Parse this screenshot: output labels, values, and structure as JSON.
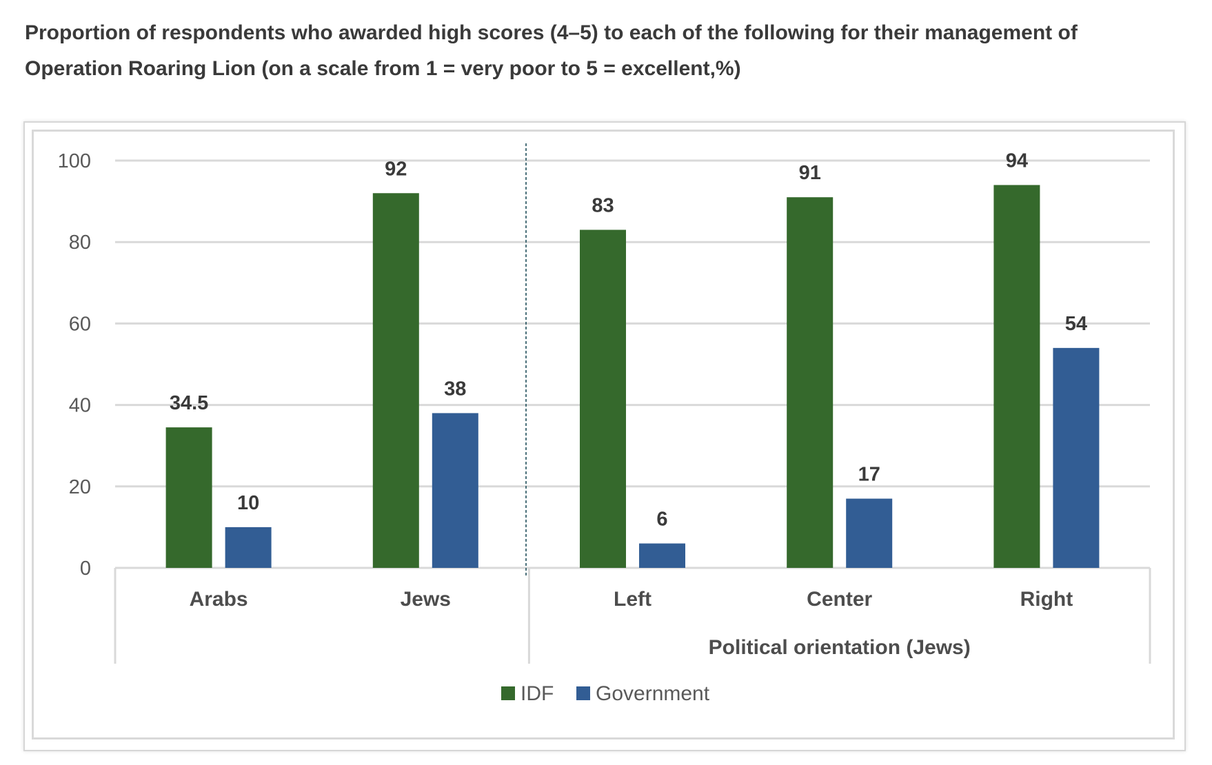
{
  "title": {
    "line1": "Proportion of respondents who awarded high scores (4–5) to each of the following for their management of",
    "line2": "Operation Roaring Lion (on a scale from 1 = very poor to 5 = excellent,%)"
  },
  "colors": {
    "idf": "#35692c",
    "government": "#325d94",
    "grid": "#d9d9d9",
    "text": "#3a3a3a",
    "axis_text": "#595959"
  },
  "chart_data": {
    "type": "bar",
    "categories": [
      "Arabs",
      "Jews",
      "Left",
      "Center",
      "Right"
    ],
    "group_label": "Political orientation (Jews)",
    "series": [
      {
        "name": "IDF",
        "values": [
          34.5,
          92,
          83,
          91,
          94
        ]
      },
      {
        "name": "Government",
        "values": [
          10,
          38,
          6,
          17,
          54
        ]
      }
    ],
    "ylim": [
      0,
      100
    ],
    "yticks": [
      0,
      20,
      40,
      60,
      80,
      100
    ],
    "grid": true,
    "legend": "bottom"
  }
}
